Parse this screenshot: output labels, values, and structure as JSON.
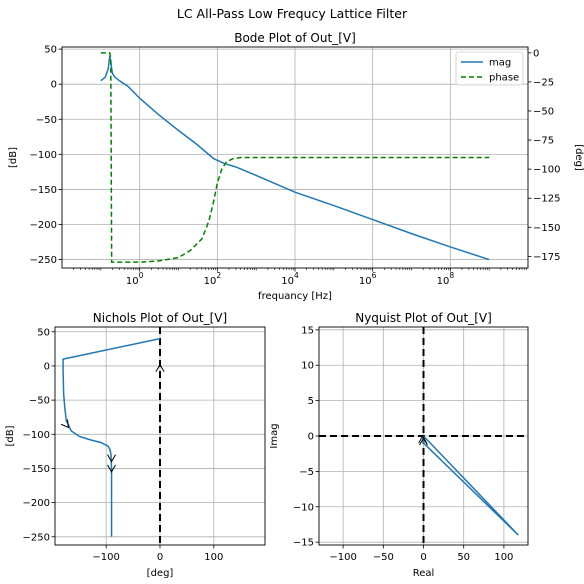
{
  "figure": {
    "suptitle": "LC All-Pass Low Frequcy Lattice Filter"
  },
  "colors": {
    "mag": "#1f77b4",
    "phase": "#008000",
    "axis": "#000000",
    "grid": "#b0b0b0",
    "reference_line": "#000000"
  },
  "chart_data": [
    {
      "id": "bode",
      "type": "line",
      "title": "Bode Plot of Out_[V]",
      "xlabel": "frequancy [Hz]",
      "ylabel": "[dB]",
      "ylabel_right": "[deg]",
      "xscale": "log",
      "xlim": [
        0.01,
        10000000000
      ],
      "ylim": [
        -262,
        53
      ],
      "ylim_right": [
        -185,
        5
      ],
      "x_ticks": [
        1,
        100,
        10000,
        1000000,
        100000000
      ],
      "x_tick_labels": [
        {
          "base": "10",
          "exp": "0"
        },
        {
          "base": "10",
          "exp": "2"
        },
        {
          "base": "10",
          "exp": "4"
        },
        {
          "base": "10",
          "exp": "6"
        },
        {
          "base": "10",
          "exp": "8"
        }
      ],
      "y_ticks": [
        50,
        0,
        -50,
        -100,
        -150,
        -200,
        -250
      ],
      "y_tick_labels": [
        "50",
        "0",
        "−50",
        "−100",
        "−150",
        "−200",
        "−250"
      ],
      "y_right_ticks": [
        0,
        -25,
        -50,
        -75,
        -100,
        -125,
        -150,
        -175
      ],
      "y_right_tick_labels": [
        "0",
        "−25",
        "−50",
        "−75",
        "−100",
        "−125",
        "−150",
        "−175"
      ],
      "grid": true,
      "legend": {
        "placement": "upper right",
        "entries": [
          "mag",
          "phase"
        ]
      },
      "series": [
        {
          "name": "mag",
          "axis": "left",
          "style": "solid",
          "x": [
            0.1,
            0.13,
            0.155,
            0.17,
            0.18,
            0.19,
            0.2,
            0.23,
            0.3,
            0.5,
            1,
            3,
            10,
            30,
            80,
            150,
            300,
            1000,
            10000,
            100000,
            1000000,
            10000000,
            100000000,
            1000000000
          ],
          "y": [
            5,
            10,
            22,
            40,
            33,
            22,
            15,
            10,
            5,
            -3,
            -20,
            -43,
            -66,
            -86,
            -106,
            -113,
            -118,
            -130,
            -154,
            -173,
            -193,
            -213,
            -232,
            -250
          ]
        },
        {
          "name": "phase",
          "axis": "right",
          "style": "dashed",
          "x": [
            0.1,
            0.17,
            0.18,
            0.185,
            0.19,
            0.2,
            1,
            3,
            10,
            20,
            40,
            60,
            80,
            100,
            130,
            170,
            250,
            400,
            1000,
            1000000000
          ],
          "y": [
            0,
            0,
            -5,
            -90,
            -180,
            -180,
            -180,
            -179,
            -176,
            -170,
            -160,
            -145,
            -128,
            -112,
            -100,
            -94,
            -91,
            -90,
            -90,
            -90
          ]
        }
      ]
    },
    {
      "id": "nichols",
      "type": "line",
      "title": "Nichols Plot of Out_[V]",
      "xlabel": "[deg]",
      "ylabel": "[dB]",
      "xlim": [
        -195,
        195
      ],
      "ylim": [
        -262,
        57
      ],
      "x_ticks": [
        -100,
        0,
        100
      ],
      "x_tick_labels": [
        "−100",
        "0",
        "100"
      ],
      "y_ticks": [
        50,
        0,
        -50,
        -100,
        -150,
        -200,
        -250
      ],
      "y_tick_labels": [
        "50",
        "0",
        "−50",
        "−100",
        "−150",
        "−200",
        "−250"
      ],
      "grid": true,
      "reference_lines": [
        {
          "orientation": "vertical",
          "value": 0,
          "style": "dashed"
        }
      ],
      "series": [
        {
          "name": "",
          "style": "solid",
          "x": [
            0,
            -180,
            -180,
            -179,
            -177,
            -174,
            -165,
            -150,
            -130,
            -110,
            -97,
            -93,
            -91,
            -90,
            -90,
            -90
          ],
          "y": [
            40,
            10,
            -5,
            -40,
            -60,
            -80,
            -95,
            -103,
            -108,
            -112,
            -117,
            -122,
            -130,
            -150,
            -200,
            -250
          ]
        }
      ],
      "arrows": [
        {
          "x": -170,
          "y": -90,
          "direction": "down-right"
        },
        {
          "x": -90,
          "y": -140,
          "direction": "down"
        },
        {
          "x": -90,
          "y": -155,
          "direction": "down"
        },
        {
          "x": 0,
          "y": 2,
          "direction": "up"
        }
      ]
    },
    {
      "id": "nyquist",
      "type": "line",
      "title": "Nyquist Plot of Out_[V]",
      "xlabel": "Real",
      "ylabel": "Imag",
      "xlim": [
        -130,
        130
      ],
      "ylim": [
        -15.4,
        15.4
      ],
      "x_ticks": [
        -100,
        -50,
        0,
        50,
        100
      ],
      "x_tick_labels": [
        "−100",
        "−50",
        "0",
        "50",
        "100"
      ],
      "y_ticks": [
        15,
        10,
        5,
        0,
        -5,
        -10,
        -15
      ],
      "y_tick_labels": [
        "15",
        "10",
        "5",
        "0",
        "−5",
        "−10",
        "−15"
      ],
      "grid": true,
      "reference_lines": [
        {
          "orientation": "vertical",
          "value": 0,
          "style": "dashed"
        },
        {
          "orientation": "horizontal",
          "value": 0,
          "style": "dashed"
        }
      ],
      "series": [
        {
          "name": "",
          "style": "solid",
          "x": [
            0,
            118,
            0,
            0
          ],
          "y": [
            0,
            -14,
            -1,
            0
          ]
        }
      ],
      "arrows": [
        {
          "x": -1,
          "y": 0,
          "direction": "up"
        },
        {
          "x": 0,
          "y": -0.3,
          "direction": "up"
        }
      ]
    }
  ]
}
